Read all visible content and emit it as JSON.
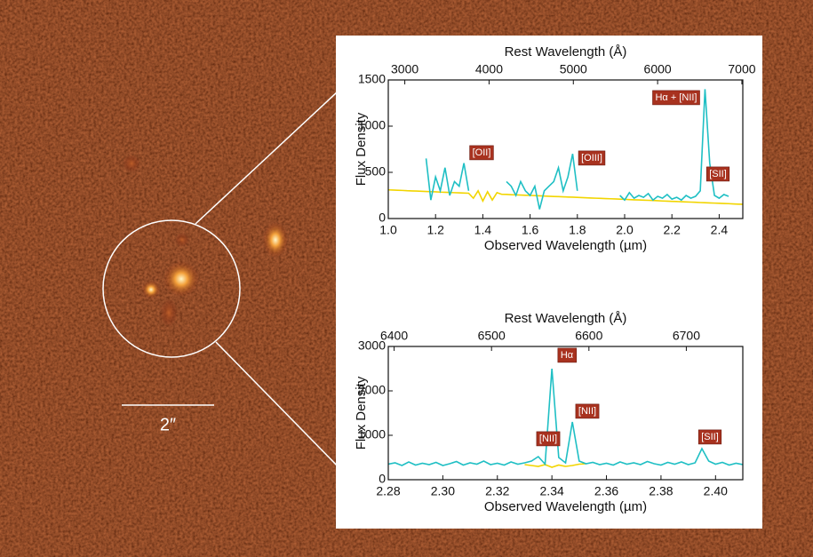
{
  "image": {
    "scale_bar_label": "2″"
  },
  "chart_data": [
    {
      "type": "line",
      "xlabel": "Observed Wavelength (µm)",
      "ylabel": "Flux Density",
      "x2label": "Rest Wavelength (Å)",
      "x": [
        1.0,
        1.02,
        1.04,
        1.06,
        1.08,
        1.1,
        1.12,
        1.14,
        1.16,
        1.18,
        1.2,
        1.22,
        1.24,
        1.26,
        1.28,
        1.3,
        1.32,
        1.34,
        1.36,
        1.38,
        1.4,
        1.42,
        1.44,
        1.46,
        1.48,
        1.5,
        1.52,
        1.54,
        1.56,
        1.58,
        1.6,
        1.62,
        1.64,
        1.66,
        1.68,
        1.7,
        1.72,
        1.74,
        1.76,
        1.78,
        1.8,
        1.82,
        1.84,
        1.86,
        1.88,
        1.9,
        1.92,
        1.94,
        1.96,
        1.98,
        2.0,
        2.02,
        2.04,
        2.06,
        2.08,
        2.1,
        2.12,
        2.14,
        2.16,
        2.18,
        2.2,
        2.22,
        2.24,
        2.26,
        2.28,
        2.3,
        2.32,
        2.34,
        2.36,
        2.38,
        2.4,
        2.42,
        2.44,
        2.46,
        2.48,
        2.5
      ],
      "series": [
        {
          "color": "#f2d500",
          "values": [
            310,
            308,
            306,
            304,
            301,
            299,
            297,
            295,
            293,
            291,
            289,
            286,
            284,
            282,
            280,
            278,
            276,
            274,
            220,
            300,
            190,
            290,
            200,
            280,
            262,
            261,
            258,
            256,
            254,
            252,
            250,
            248,
            246,
            243,
            241,
            239,
            237,
            235,
            233,
            231,
            229,
            227,
            224,
            222,
            220,
            218,
            216,
            214,
            212,
            210,
            208,
            205,
            203,
            201,
            199,
            197,
            195,
            193,
            190,
            188,
            186,
            184,
            182,
            180,
            178,
            176,
            173,
            171,
            169,
            167,
            165,
            163,
            161,
            158,
            156,
            154
          ]
        },
        {
          "color": "#1fbfc4",
          "values": [
            null,
            null,
            null,
            null,
            null,
            null,
            null,
            null,
            650,
            200,
            450,
            300,
            550,
            250,
            400,
            350,
            600,
            300,
            null,
            null,
            null,
            null,
            null,
            null,
            null,
            400,
            350,
            250,
            400,
            300,
            250,
            350,
            100,
            300,
            350,
            400,
            550,
            300,
            450,
            700,
            300,
            null,
            null,
            null,
            null,
            null,
            null,
            null,
            null,
            250,
            200,
            280,
            220,
            250,
            230,
            270,
            200,
            240,
            220,
            260,
            210,
            230,
            200,
            250,
            220,
            240,
            300,
            1400,
            600,
            250,
            220,
            260,
            240,
            null,
            null,
            null
          ]
        }
      ],
      "xlim": [
        1.0,
        2.5
      ],
      "xticks": [
        {
          "value": 1,
          "label": "1.0"
        },
        1.2,
        1.4,
        1.6,
        1.8,
        {
          "value": 2,
          "label": "2.0"
        },
        2.2,
        2.4
      ],
      "x2lim": [
        2804,
        7011
      ],
      "x2ticks": [
        3000,
        4000,
        5000,
        6000,
        7000
      ],
      "ylim": [
        0,
        1500
      ],
      "yticks": [
        0,
        500,
        1000,
        1500
      ],
      "annotations": [
        "[OII]",
        "[OIII]",
        "Hα + [NII]",
        "[SII]"
      ]
    },
    {
      "type": "line",
      "xlabel": "Observed Wavelength (µm)",
      "ylabel": "Flux Density",
      "x2label": "Rest Wavelength (Å)",
      "x": [
        2.28,
        2.2825,
        2.285,
        2.2875,
        2.29,
        2.2925,
        2.295,
        2.2975,
        2.3,
        2.3025,
        2.305,
        2.3075,
        2.31,
        2.3125,
        2.315,
        2.3175,
        2.32,
        2.3225,
        2.325,
        2.3275,
        2.33,
        2.3325,
        2.335,
        2.3375,
        2.34,
        2.3425,
        2.345,
        2.3475,
        2.35,
        2.3525,
        2.355,
        2.3575,
        2.36,
        2.3625,
        2.365,
        2.3675,
        2.37,
        2.3725,
        2.375,
        2.3775,
        2.38,
        2.3825,
        2.385,
        2.3875,
        2.39,
        2.3925,
        2.395,
        2.3975,
        2.4,
        2.4025,
        2.405,
        2.4075,
        2.41
      ],
      "series": [
        {
          "color": "#f2d500",
          "values": [
            null,
            null,
            null,
            null,
            null,
            null,
            null,
            null,
            null,
            null,
            null,
            null,
            null,
            null,
            null,
            null,
            null,
            null,
            null,
            null,
            340,
            320,
            300,
            340,
            280,
            330,
            300,
            320,
            350,
            360,
            null,
            null,
            null,
            null,
            null,
            null,
            null,
            null,
            null,
            null,
            null,
            null,
            null,
            null,
            null,
            null,
            null,
            null,
            null,
            null,
            null,
            null,
            null
          ]
        },
        {
          "color": "#1fbfc4",
          "values": [
            350,
            380,
            320,
            400,
            330,
            370,
            340,
            390,
            320,
            360,
            410,
            330,
            380,
            350,
            420,
            340,
            370,
            330,
            400,
            350,
            380,
            420,
            520,
            350,
            2500,
            500,
            380,
            1300,
            420,
            360,
            390,
            340,
            370,
            330,
            400,
            350,
            380,
            340,
            410,
            360,
            330,
            390,
            350,
            400,
            340,
            380,
            700,
            420,
            350,
            390,
            330,
            370,
            340
          ]
        }
      ],
      "xlim": [
        2.28,
        2.41
      ],
      "xticks": [
        2.28,
        {
          "value": 2.3,
          "label": "2.30"
        },
        2.32,
        2.34,
        2.36,
        2.38,
        {
          "value": 2.4,
          "label": "2.40"
        }
      ],
      "x2lim": [
        6394,
        6758
      ],
      "x2ticks": [
        6400,
        6500,
        6600,
        6700
      ],
      "ylim": [
        0,
        3000
      ],
      "yticks": [
        0,
        1000,
        2000,
        3000
      ],
      "annotations": [
        "Hα",
        "[NII]",
        "[NII]",
        "[SII]"
      ]
    }
  ]
}
